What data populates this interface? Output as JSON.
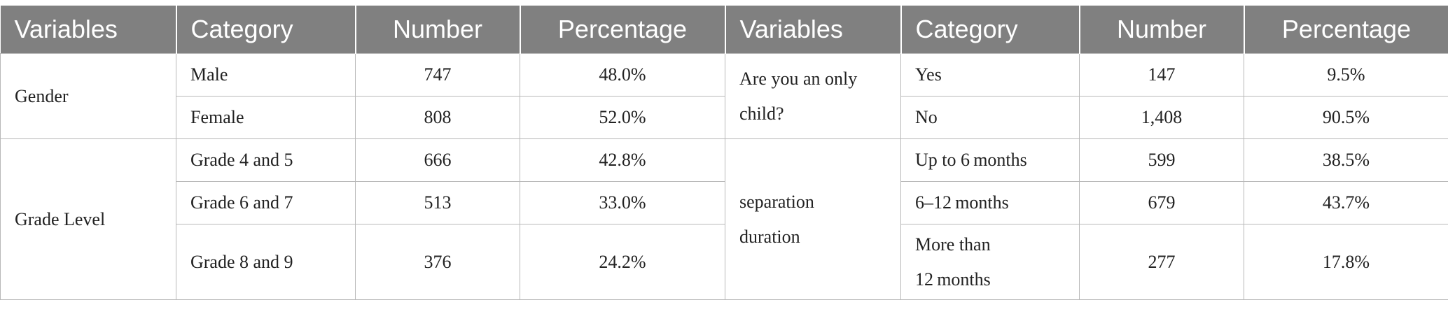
{
  "headers": [
    "Variables",
    "Category",
    "Number",
    "Percentage",
    "Variables",
    "Category",
    "Number",
    "Percentage"
  ],
  "left": {
    "gender": {
      "variable": "Gender",
      "rows": [
        {
          "category": "Male",
          "number": "747",
          "percentage": "48.0%"
        },
        {
          "category": "Female",
          "number": "808",
          "percentage": "52.0%"
        }
      ]
    },
    "grade": {
      "variable": "Grade Level",
      "rows": [
        {
          "category": "Grade 4 and 5",
          "number": "666",
          "percentage": "42.8%"
        },
        {
          "category": "Grade 6 and 7",
          "number": "513",
          "percentage": "33.0%"
        },
        {
          "category": "Grade 8 and 9",
          "number": "376",
          "percentage": "24.2%"
        }
      ]
    }
  },
  "right": {
    "only_child": {
      "variable_line1": "Are you an only",
      "variable_line2": "child?",
      "rows": [
        {
          "category": "Yes",
          "number": "147",
          "percentage": "9.5%"
        },
        {
          "category": "No",
          "number": "1,408",
          "percentage": "90.5%"
        }
      ]
    },
    "separation": {
      "variable_line1": "separation",
      "variable_line2": "duration",
      "rows": [
        {
          "category": "Up to 6 months",
          "number": "599",
          "percentage": "38.5%"
        },
        {
          "category": "6–12 months",
          "number": "679",
          "percentage": "43.7%"
        },
        {
          "category_line1": "More than",
          "category_line2": "12 months",
          "number": "277",
          "percentage": "17.8%"
        }
      ]
    }
  }
}
